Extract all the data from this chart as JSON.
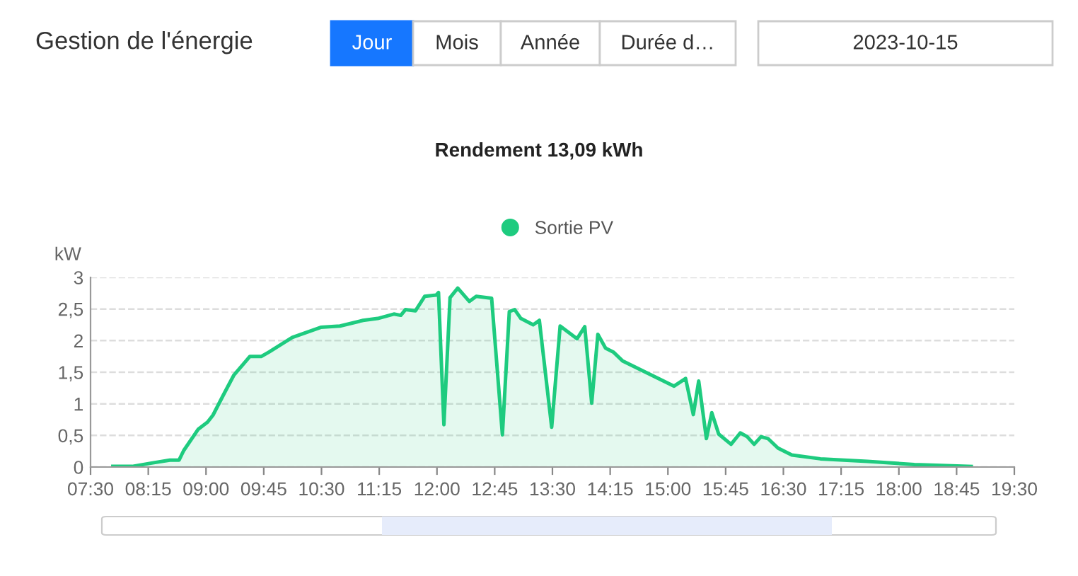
{
  "chart_data": {
    "type": "area",
    "title": "Gestion de l'énergie",
    "subtitle": "Rendement 13,09 kWh",
    "ylabel": "kW",
    "annotations": [
      "Jour",
      "Mois",
      "Année",
      "Durée d…",
      "2023-10-15"
    ],
    "series": [
      {
        "name": "Sortie PV",
        "color": "#1ecb7f",
        "x": [
          7.79,
          8.04,
          8.28,
          8.53,
          8.65,
          8.71,
          8.9,
          9.02,
          9.09,
          9.23,
          9.36,
          9.57,
          9.72,
          9.82,
          10.12,
          10.49,
          10.74,
          11.04,
          11.23,
          11.44,
          11.53,
          11.59,
          11.72,
          11.84,
          11.99,
          12.02,
          12.09,
          12.17,
          12.27,
          12.42,
          12.51,
          12.71,
          12.85,
          12.94,
          13.01,
          13.09,
          13.25,
          13.33,
          13.49,
          13.6,
          13.82,
          13.92,
          14.01,
          14.09,
          14.19,
          14.29,
          14.41,
          14.71,
          15.08,
          15.23,
          15.33,
          15.4,
          15.5,
          15.57,
          15.66,
          15.82,
          15.94,
          16.03,
          16.12,
          16.21,
          16.3,
          16.43,
          16.61,
          16.98,
          17.59,
          18.2,
          18.94
        ],
        "values": [
          0.01,
          0.01,
          0.06,
          0.11,
          0.11,
          0.26,
          0.6,
          0.71,
          0.82,
          1.15,
          1.45,
          1.75,
          1.75,
          1.82,
          2.05,
          2.21,
          2.23,
          2.32,
          2.35,
          2.42,
          2.4,
          2.49,
          2.47,
          2.7,
          2.72,
          2.76,
          0.67,
          2.68,
          2.83,
          2.62,
          2.7,
          2.67,
          0.51,
          2.46,
          2.49,
          2.35,
          2.25,
          2.32,
          0.63,
          2.23,
          2.03,
          2.22,
          1.01,
          2.1,
          1.88,
          1.82,
          1.68,
          1.5,
          1.28,
          1.4,
          0.83,
          1.36,
          0.45,
          0.86,
          0.52,
          0.36,
          0.54,
          0.48,
          0.36,
          0.48,
          0.45,
          0.3,
          0.19,
          0.13,
          0.09,
          0.04,
          0.01
        ]
      }
    ],
    "xlim": [
      7.5,
      19.5
    ],
    "xticks": [
      {
        "value": 7.5,
        "label": "07:30"
      },
      {
        "value": 8.25,
        "label": "08:15"
      },
      {
        "value": 9,
        "label": "09:00"
      },
      {
        "value": 9.75,
        "label": "09:45"
      },
      {
        "value": 10.5,
        "label": "10:30"
      },
      {
        "value": 11.25,
        "label": "11:15"
      },
      {
        "value": 12,
        "label": "12:00"
      },
      {
        "value": 12.75,
        "label": "12:45"
      },
      {
        "value": 13.5,
        "label": "13:30"
      },
      {
        "value": 14.25,
        "label": "14:15"
      },
      {
        "value": 15,
        "label": "15:00"
      },
      {
        "value": 15.75,
        "label": "15:45"
      },
      {
        "value": 16.5,
        "label": "16:30"
      },
      {
        "value": 17.25,
        "label": "17:15"
      },
      {
        "value": 18,
        "label": "18:00"
      },
      {
        "value": 18.75,
        "label": "18:45"
      },
      {
        "value": 19.5,
        "label": "19:30"
      }
    ],
    "ylim": [
      0,
      3
    ],
    "yticks": [
      0,
      {
        "value": 0.5,
        "label": "0,5"
      },
      1,
      {
        "value": 1.5,
        "label": "1,5"
      },
      2,
      {
        "value": 2.5,
        "label": "2,5"
      },
      3
    ],
    "grid": "y",
    "legend": "top",
    "marker": "none",
    "line_style": "solid"
  }
}
